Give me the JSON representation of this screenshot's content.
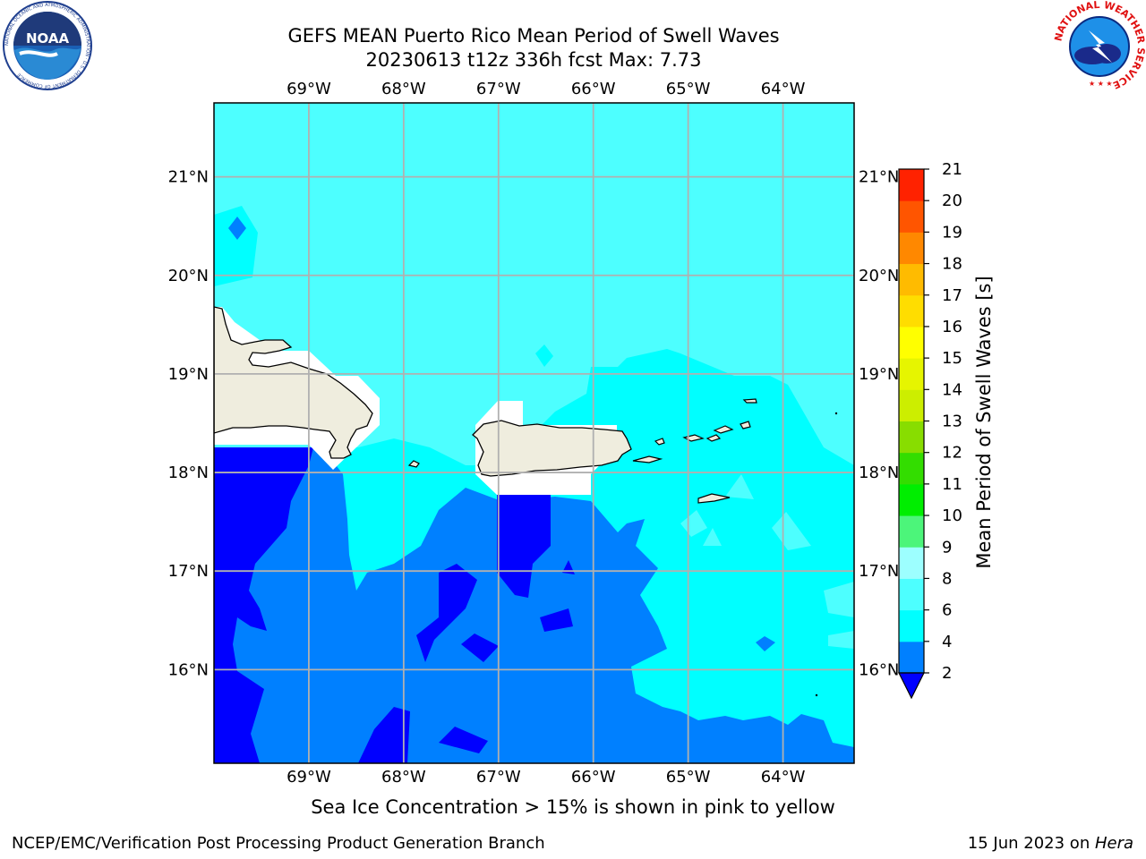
{
  "header": {
    "title_line1": "GEFS MEAN Puerto Rico Mean Period of Swell Waves",
    "title_line2": "20230613 t12z 336h fcst   Max: 7.73"
  },
  "map": {
    "lon_labels": [
      "69°W",
      "68°W",
      "67°W",
      "66°W",
      "65°W",
      "64°W"
    ],
    "lat_labels": [
      "21°N",
      "20°N",
      "19°N",
      "18°N",
      "17°N",
      "16°N"
    ],
    "lon_values": [
      -69,
      -68,
      -67,
      -66,
      -65,
      -64
    ],
    "lat_values": [
      21,
      20,
      19,
      18,
      17,
      16
    ],
    "extent": {
      "lon": [
        -70,
        -63.25
      ],
      "lat": [
        15.05,
        21.75
      ]
    },
    "colors": {
      "land": "#efedde",
      "masked": "#ffffff",
      "band_2_4": "#0080ff",
      "band_lt2": "#0000ff",
      "band_4_6": "#00ffff",
      "band_6_8": "#4dffff",
      "gridline": "#b0b0b0"
    }
  },
  "colorbar": {
    "label": "Mean Period of Swell Waves [s]",
    "ticks": [
      "2",
      "4",
      "6",
      "8",
      "9",
      "10",
      "11",
      "12",
      "13",
      "14",
      "15",
      "16",
      "17",
      "18",
      "19",
      "20",
      "21"
    ],
    "band_colors": [
      "#0080ff",
      "#00ffff",
      "#4dffff",
      "#9dffff",
      "#4cf57a",
      "#00ee00",
      "#33dd00",
      "#88dd00",
      "#ccee00",
      "#e6f500",
      "#ffff00",
      "#ffdd00",
      "#ffbb00",
      "#ff8800",
      "#ff5500",
      "#ff2200",
      "#ff0000"
    ],
    "extend_color": "#0000ff"
  },
  "footer": {
    "caption": "Sea Ice Concentration > 15% is shown in pink to yellow",
    "left": "NCEP/EMC/Verification Post Processing Product Generation Branch",
    "right_date": "15 Jun 2023 on ",
    "right_host": "Hera"
  },
  "logos": {
    "noaa_text": "NOAA",
    "noaa_ring": "NATIONAL OCEANIC AND ATMOSPHERIC ADMINISTRATION · U.S. DEPARTMENT OF COMMERCE",
    "nws_ring": "NATIONAL WEATHER SERVICE"
  }
}
